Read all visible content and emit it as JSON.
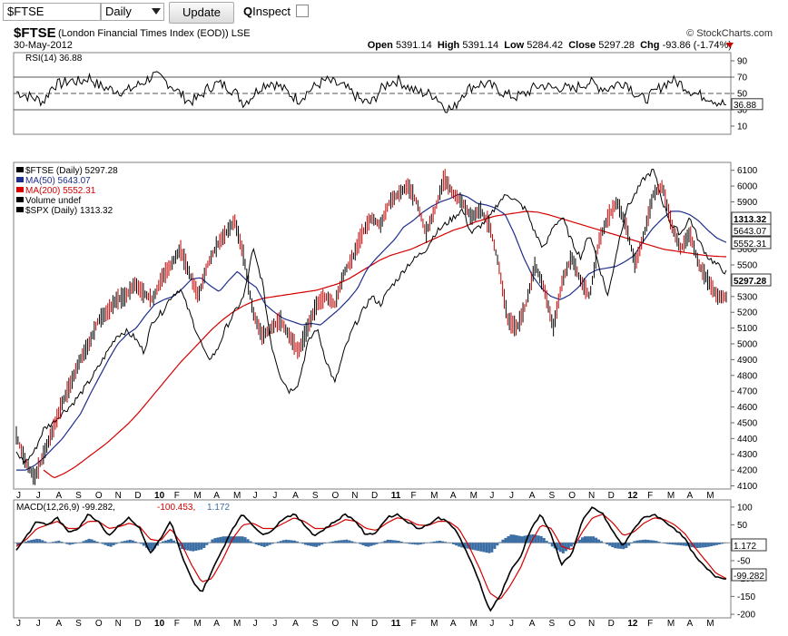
{
  "toolbar": {
    "symbol_value": "$FTSE",
    "period_value": "Daily",
    "update_label": "Update",
    "inspect_label": "Inspect"
  },
  "header": {
    "symbol": "$FTSE",
    "name": "(London Financial Times Index (EOD))  LSE",
    "date": "30-May-2012",
    "credit": "© StockCharts.com",
    "open_label": "Open",
    "open": "5391.14",
    "high_label": "High",
    "high": "5391.14",
    "low_label": "Low",
    "low": "5284.42",
    "close_label": "Close",
    "close": "5297.28",
    "chg_label": "Chg",
    "chg": "-93.86 (-1.74%)"
  },
  "colors": {
    "ftse": "#000000",
    "ma50": "#1f2e8c",
    "ma200": "#d40000",
    "down_bar": "#c00000",
    "spx": "#000000",
    "macd_hist": "#3a6ea5",
    "signal": "#d40000",
    "panel_border": "#7f7f7f"
  },
  "chart_data": [
    {
      "type": "line",
      "panel": "rsi",
      "legend": "RSI(14) 36.88",
      "y_ticks": [
        "90",
        "70",
        "50",
        "30",
        "10"
      ],
      "ylim": [
        0,
        100
      ],
      "reference_lines": [
        70,
        50,
        30
      ],
      "last_value_label": "36.88",
      "series": [
        {
          "name": "RSI(14)",
          "values": [
            52,
            48,
            44,
            40,
            60,
            62,
            66,
            64,
            70,
            60,
            56,
            54,
            52,
            58,
            64,
            72,
            68,
            60,
            50,
            40,
            44,
            56,
            62,
            60,
            52,
            38,
            48,
            60,
            64,
            58,
            50,
            42,
            52,
            60,
            66,
            62,
            58,
            50,
            40,
            38,
            54,
            64,
            66,
            58,
            52,
            50,
            48,
            34,
            30,
            50,
            58,
            62,
            60,
            54,
            48,
            46,
            50,
            58,
            60,
            56,
            58,
            54,
            60,
            64,
            58,
            56,
            62,
            64,
            50,
            42,
            50,
            60,
            66,
            62,
            54,
            48,
            46,
            40,
            36
          ]
        }
      ]
    },
    {
      "type": "line",
      "panel": "price",
      "y_ticks": [
        "6100",
        "6000",
        "5900",
        "5800",
        "5700",
        "5600",
        "5500",
        "5400",
        "5300",
        "5200",
        "5100",
        "5000",
        "4900",
        "4800",
        "4700",
        "4600",
        "4500",
        "4400",
        "4300",
        "4200",
        "4100"
      ],
      "ylim": [
        4080,
        6150
      ],
      "x_ticks": [
        "J",
        "J",
        "A",
        "S",
        "O",
        "N",
        "D",
        "10",
        "F",
        "M",
        "A",
        "M",
        "J",
        "J",
        "A",
        "S",
        "O",
        "N",
        "D",
        "11",
        "F",
        "M",
        "A",
        "M",
        "J",
        "J",
        "A",
        "S",
        "O",
        "N",
        "D",
        "12",
        "F",
        "M",
        "A",
        "M"
      ],
      "legend": [
        "$FTSE (Daily) 5297.28",
        "MA(50) 5643.07",
        "MA(200) 5552.31",
        "Volume undef",
        "$SPX (Daily) 1313.32"
      ],
      "right_labels": [
        "1313.32",
        "5643.07",
        "5552.31",
        "5297.28"
      ],
      "series": [
        {
          "name": "$FTSE (Daily) 5297.28",
          "values": [
            4420,
            4250,
            4150,
            4300,
            4450,
            4620,
            4750,
            4900,
            5000,
            5150,
            5200,
            5280,
            5300,
            5380,
            5320,
            5280,
            5420,
            5500,
            5600,
            5450,
            5300,
            5500,
            5620,
            5700,
            5780,
            5550,
            5200,
            5050,
            5100,
            5150,
            5050,
            4950,
            5100,
            5250,
            5300,
            5250,
            5450,
            5550,
            5700,
            5800,
            5750,
            5900,
            5950,
            6000,
            5900,
            5700,
            5850,
            6050,
            5950,
            5900,
            5800,
            5850,
            5750,
            5500,
            5150,
            5100,
            5250,
            5500,
            5350,
            5100,
            5400,
            5550,
            5400,
            5300,
            5650,
            5800,
            5900,
            5750,
            5500,
            5700,
            5950,
            6000,
            5750,
            5600,
            5700,
            5500,
            5400,
            5300,
            5297
          ]
        },
        {
          "name": "MA(50) 5643.07",
          "values": [
            4200,
            4200,
            4230,
            4280,
            4340,
            4400,
            4480,
            4560,
            4680,
            4790,
            4900,
            5000,
            5060,
            5100,
            5180,
            5250,
            5280,
            5300,
            5350,
            5410,
            5420,
            5370,
            5330,
            5400,
            5460,
            5400,
            5360,
            5250,
            5200,
            5160,
            5140,
            5120,
            5130,
            5120,
            5170,
            5220,
            5280,
            5350,
            5470,
            5540,
            5600,
            5660,
            5740,
            5780,
            5830,
            5870,
            5900,
            5920,
            5950,
            5930,
            5890,
            5880,
            5860,
            5820,
            5700,
            5550,
            5430,
            5350,
            5300,
            5280,
            5310,
            5360,
            5440,
            5470,
            5480,
            5490,
            5520,
            5560,
            5650,
            5730,
            5790,
            5840,
            5840,
            5820,
            5780,
            5720,
            5670,
            5643
          ]
        },
        {
          "name": "MA(200) 5552.31",
          "values": [
            4200,
            4150,
            4180,
            4220,
            4270,
            4320,
            4370,
            4430,
            4490,
            4560,
            4640,
            4720,
            4800,
            4880,
            4950,
            5020,
            5090,
            5150,
            5200,
            5240,
            5270,
            5290,
            5300,
            5310,
            5320,
            5330,
            5340,
            5360,
            5380,
            5410,
            5450,
            5490,
            5530,
            5560,
            5580,
            5600,
            5630,
            5660,
            5690,
            5720,
            5740,
            5770,
            5790,
            5810,
            5820,
            5830,
            5840,
            5835,
            5820,
            5800,
            5780,
            5760,
            5740,
            5720,
            5700,
            5680,
            5660,
            5640,
            5620,
            5600,
            5590,
            5580,
            5570,
            5560,
            5555,
            5552
          ]
        },
        {
          "name": "$SPX (Daily) 1313.32",
          "values": [
            4300,
            4250,
            4320,
            4460,
            4500,
            4560,
            4610,
            4680,
            4760,
            4850,
            4950,
            5050,
            5080,
            5040,
            4950,
            5150,
            5200,
            5300,
            5350,
            5200,
            5050,
            4900,
            4950,
            5100,
            5200,
            5300,
            5600,
            5400,
            5000,
            4800,
            4700,
            4750,
            5000,
            5100,
            4900,
            4750,
            4950,
            5100,
            5200,
            5300,
            5250,
            5350,
            5420,
            5500,
            5550,
            5600,
            5700,
            5750,
            5800,
            5850,
            5700,
            5750,
            5800,
            5900,
            5950,
            5900,
            5850,
            5700,
            5600,
            5750,
            5800,
            5650,
            5550,
            5700,
            5500,
            5300,
            5600,
            5850,
            5950,
            6050,
            6100,
            5900,
            5750,
            5700,
            5800,
            5650,
            5550,
            5500,
            5450
          ]
        }
      ]
    },
    {
      "type": "line",
      "panel": "macd",
      "legend": [
        "MACD(12,26,9) -99.282,",
        "-100.453,",
        "1.172"
      ],
      "y_ticks": [
        "100",
        "50",
        "0",
        "-50",
        "-100",
        "-150",
        "-200"
      ],
      "ylim": [
        -210,
        120
      ],
      "right_labels": [
        "1.172",
        "-99.282"
      ],
      "x_ticks": [
        "J",
        "J",
        "A",
        "S",
        "O",
        "N",
        "D",
        "10",
        "F",
        "M",
        "A",
        "M",
        "J",
        "J",
        "A",
        "S",
        "O",
        "N",
        "D",
        "11",
        "F",
        "M",
        "A",
        "M",
        "J",
        "J",
        "A",
        "S",
        "O",
        "N",
        "D",
        "12",
        "F",
        "M",
        "A",
        "M"
      ],
      "series": [
        {
          "name": "MACD",
          "values": [
            -20,
            20,
            60,
            50,
            70,
            30,
            40,
            80,
            60,
            20,
            50,
            70,
            40,
            -30,
            10,
            60,
            -30,
            -100,
            -140,
            -80,
            -20,
            40,
            80,
            50,
            20,
            40,
            70,
            80,
            50,
            20,
            40,
            60,
            80,
            60,
            20,
            30,
            70,
            80,
            60,
            40,
            50,
            70,
            60,
            20,
            -40,
            -110,
            -190,
            -150,
            -80,
            -40,
            40,
            80,
            20,
            -60,
            -30,
            60,
            100,
            80,
            30,
            -10,
            40,
            70,
            80,
            60,
            40,
            10,
            -40,
            -70,
            -95,
            -99
          ]
        },
        {
          "name": "Signal",
          "values": [
            -10,
            10,
            40,
            50,
            60,
            40,
            40,
            60,
            60,
            40,
            45,
            55,
            45,
            10,
            5,
            40,
            0,
            -60,
            -110,
            -100,
            -50,
            10,
            50,
            55,
            40,
            40,
            55,
            70,
            60,
            40,
            40,
            50,
            65,
            60,
            40,
            35,
            55,
            70,
            65,
            50,
            48,
            60,
            60,
            40,
            -10,
            -70,
            -140,
            -160,
            -120,
            -70,
            0,
            50,
            40,
            -10,
            -20,
            30,
            70,
            80,
            55,
            20,
            30,
            55,
            70,
            65,
            50,
            25,
            -15,
            -50,
            -85,
            -100
          ]
        }
      ],
      "histogram_label": "1.172"
    }
  ]
}
